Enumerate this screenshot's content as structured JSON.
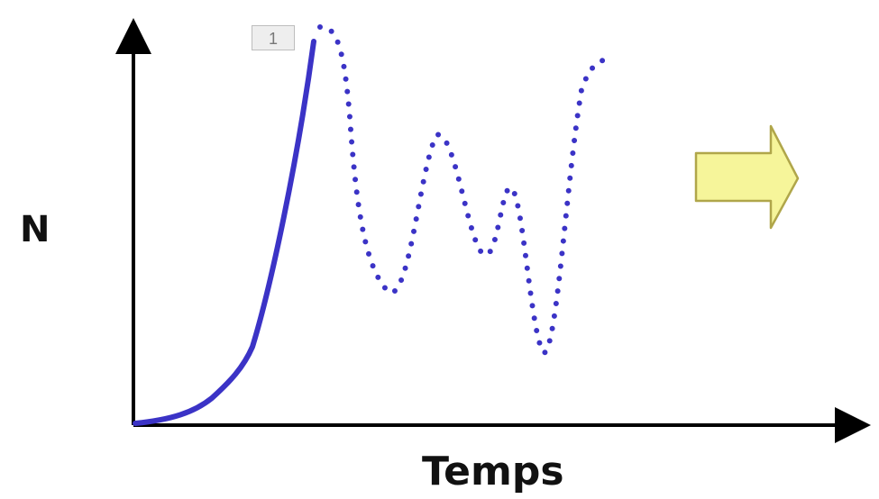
{
  "diagram": {
    "ylabel": "N",
    "xlabel": "Temps",
    "badge": "1",
    "colors": {
      "axis": "#000000",
      "solid_curve": "#3b33c6",
      "dotted_curve": "#3b33c6",
      "arrow_fill": "#f6f59a",
      "arrow_stroke": "#b0a64a",
      "badge_bg": "#eeeeee"
    },
    "icons": [
      "arrow-right-icon"
    ]
  }
}
